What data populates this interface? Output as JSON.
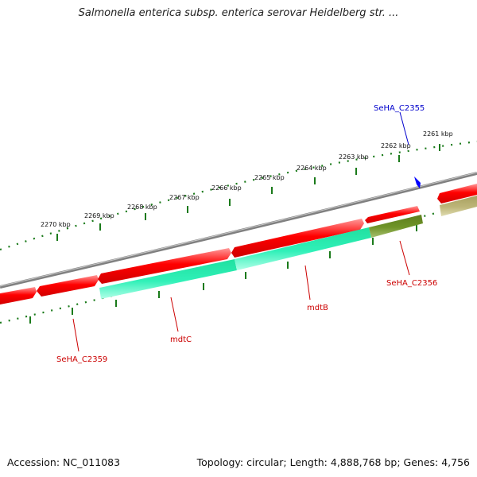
{
  "title": "Salmonella enterica subsp. enterica serovar Heidelberg str. ...",
  "footer": {
    "accession": "Accession: NC_011083",
    "topology": "Topology: circular; Length: 4,888,768 bp; Genes: 4,756"
  },
  "colors": {
    "backbone": "#808080",
    "cds_forward": "#ff0000",
    "cds_forward_light": "#ff8080",
    "gene_teal": "#22e6aa",
    "gene_teal_light": "#a0ffe0",
    "gene_olive": "#6b8e23",
    "gene_khaki": "#b8b070",
    "tick": "#1a7a1a",
    "label_red": "#cc0000",
    "label_blue": "#0000cc",
    "marker": "#0000ff"
  },
  "ruler_labels": [
    "2270 kbp",
    "2269 kbp",
    "2268 kbp",
    "2267 kbp",
    "2266 kbp",
    "2265 kbp",
    "2264 kbp",
    "2263 kbp",
    "2262 kbp",
    "2261 kbp"
  ],
  "gene_labels": {
    "SeHA_C2355": "SeHA_C2355",
    "SeHA_C2356": "SeHA_C2356",
    "mdtB": "mdtB",
    "mdtC": "mdtC",
    "SeHA_C2359": "SeHA_C2359"
  }
}
